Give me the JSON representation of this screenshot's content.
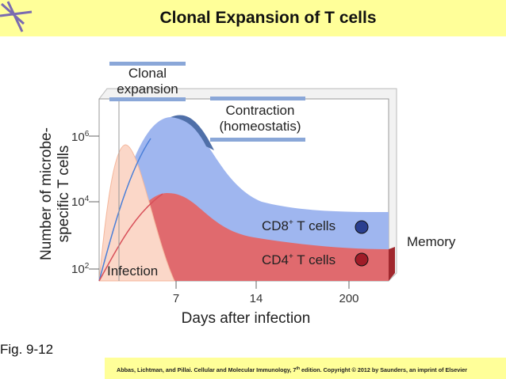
{
  "header": {
    "title": "Clonal Expansion of T cells"
  },
  "figure": {
    "y_axis_label": [
      "Number of microbe-",
      "specific T cells"
    ],
    "x_axis_label": "Days after infection",
    "y_ticks": [
      {
        "base": "10",
        "exponent": "6"
      },
      {
        "base": "10",
        "exponent": "4"
      },
      {
        "base": "10",
        "exponent": "2"
      }
    ],
    "x_ticks": [
      "7",
      "14",
      "200"
    ],
    "phases": {
      "clonal_expansion": [
        "Clonal",
        "expansion"
      ],
      "contraction": [
        "Contraction",
        "(homeostatis)"
      ]
    },
    "labels": {
      "infection": "Infection",
      "memory": "Memory",
      "cd8": {
        "name": "CD8",
        "sup": "+",
        "rest": " T cells"
      },
      "cd4": {
        "name": "CD4",
        "sup": "+",
        "rest": " T cells"
      }
    }
  },
  "footer": {
    "figure_number": "Fig. 9-12",
    "citation": {
      "before": "Abbas, Lichtman, and Pillai. Cellular and Molecular Immunology, 7",
      "sup": "th",
      "after": " edition. Copyright © 2012 by Saunders, an imprint of Elsevier"
    }
  }
}
